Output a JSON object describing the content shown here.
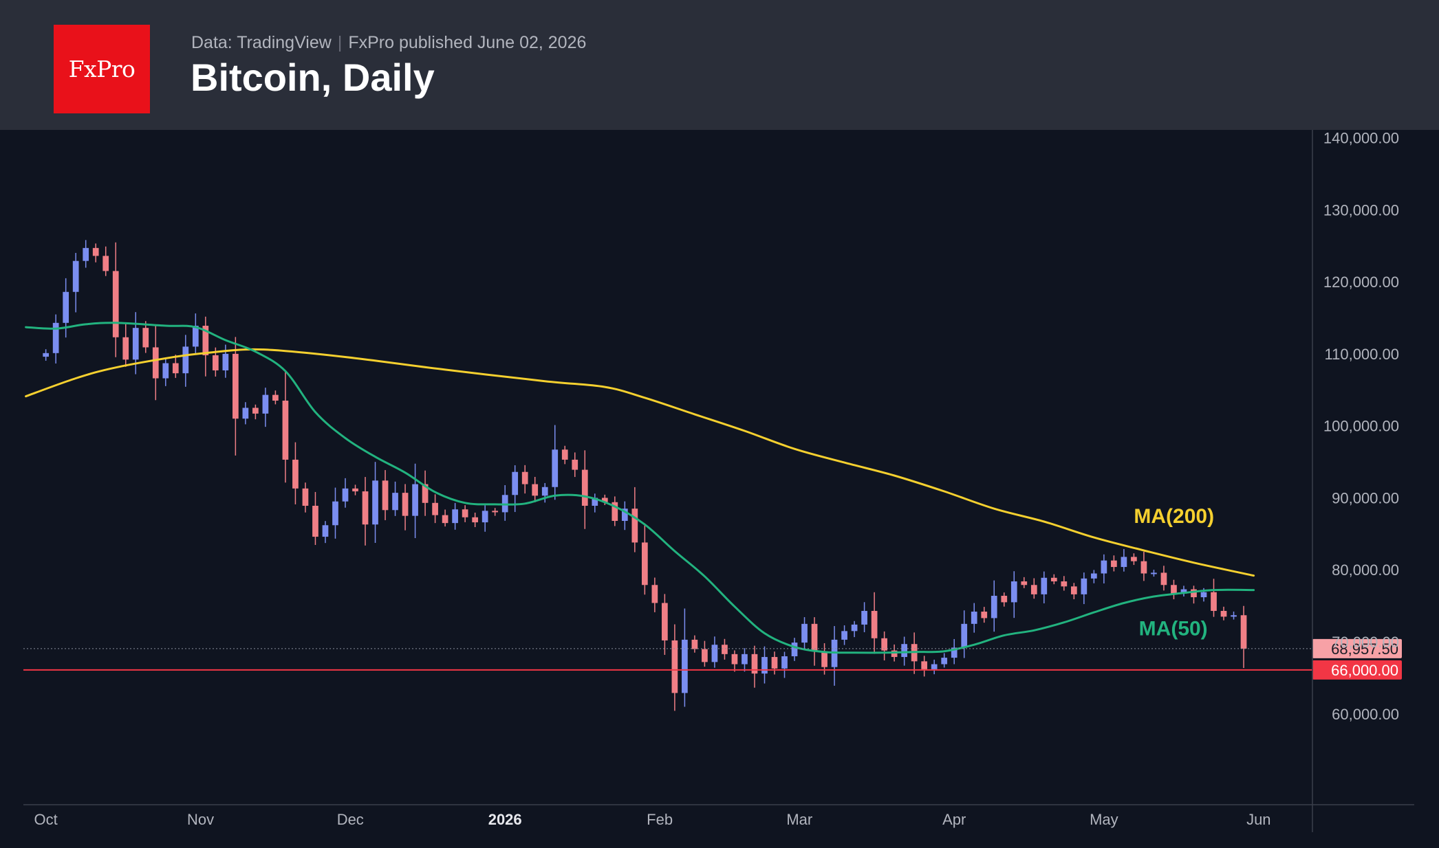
{
  "header": {
    "logo_text": "FxPro",
    "source": "Data: TradingView",
    "publisher": "FxPro published June 02, 2026",
    "title": "Bitcoin, Daily"
  },
  "colors": {
    "background": "#0f1420",
    "header_bg": "#2a2e39",
    "logo_red": "#e9111a",
    "candle_up": "#7b8ef0",
    "candle_down": "#f07f86",
    "ma200": "#f5d02f",
    "ma50": "#22b37f",
    "support_line": "#f23645",
    "axis_text": "#b2b5be"
  },
  "chart_data": {
    "type": "candlestick",
    "title": "Bitcoin, Daily",
    "ylim": [
      47000,
      141000
    ],
    "y_ticks": [
      {
        "value": 60000,
        "label": "60,000.00"
      },
      {
        "value": 70000,
        "label": "70,000.00"
      },
      {
        "value": 80000,
        "label": "80,000.00"
      },
      {
        "value": 90000,
        "label": "90,000.00"
      },
      {
        "value": 100000,
        "label": "100,000.00"
      },
      {
        "value": 110000,
        "label": "110,000.00"
      },
      {
        "value": 120000,
        "label": "120,000.00"
      },
      {
        "value": 130000,
        "label": "130,000.00"
      },
      {
        "value": 140000,
        "label": "140,000.00"
      }
    ],
    "x_ticks": [
      {
        "label": "Oct",
        "day": 0,
        "bold": false
      },
      {
        "label": "Nov",
        "day": 31,
        "bold": false
      },
      {
        "label": "Dec",
        "day": 61,
        "bold": false
      },
      {
        "label": "2026",
        "day": 92,
        "bold": true
      },
      {
        "label": "Feb",
        "day": 123,
        "bold": false
      },
      {
        "label": "Mar",
        "day": 151,
        "bold": false
      },
      {
        "label": "Apr",
        "day": 182,
        "bold": false
      },
      {
        "label": "May",
        "day": 212,
        "bold": false
      },
      {
        "label": "Jun",
        "day": 243,
        "bold": false
      }
    ],
    "x_range_days": [
      -4.5,
      253.5
    ],
    "closes": [
      [
        -4,
        109500
      ],
      [
        0,
        110000
      ],
      [
        2,
        114200
      ],
      [
        4,
        118500
      ],
      [
        6,
        122800
      ],
      [
        8,
        124600
      ],
      [
        10,
        123500
      ],
      [
        12,
        121400
      ],
      [
        14,
        112200
      ],
      [
        16,
        109100
      ],
      [
        18,
        113500
      ],
      [
        20,
        110800
      ],
      [
        22,
        106500
      ],
      [
        24,
        108600
      ],
      [
        26,
        107200
      ],
      [
        28,
        110900
      ],
      [
        30,
        113800
      ],
      [
        32,
        109700
      ],
      [
        34,
        107600
      ],
      [
        36,
        109900
      ],
      [
        38,
        100900
      ],
      [
        40,
        102400
      ],
      [
        42,
        101600
      ],
      [
        44,
        104200
      ],
      [
        46,
        103400
      ],
      [
        48,
        95200
      ],
      [
        50,
        91200
      ],
      [
        52,
        88800
      ],
      [
        54,
        84500
      ],
      [
        56,
        86100
      ],
      [
        58,
        89400
      ],
      [
        60,
        91200
      ],
      [
        62,
        90800
      ],
      [
        64,
        86200
      ],
      [
        66,
        92300
      ],
      [
        68,
        88200
      ],
      [
        70,
        90600
      ],
      [
        72,
        87400
      ],
      [
        74,
        91800
      ],
      [
        76,
        89200
      ],
      [
        78,
        87500
      ],
      [
        80,
        86400
      ],
      [
        82,
        88300
      ],
      [
        84,
        87200
      ],
      [
        86,
        86500
      ],
      [
        88,
        88100
      ],
      [
        90,
        87900
      ],
      [
        92,
        90300
      ],
      [
        94,
        93500
      ],
      [
        96,
        91800
      ],
      [
        98,
        90200
      ],
      [
        100,
        91400
      ],
      [
        102,
        96600
      ],
      [
        104,
        95200
      ],
      [
        106,
        93800
      ],
      [
        108,
        88800
      ],
      [
        110,
        89900
      ],
      [
        112,
        89300
      ],
      [
        114,
        86700
      ],
      [
        116,
        88400
      ],
      [
        118,
        83700
      ],
      [
        120,
        77800
      ],
      [
        122,
        75300
      ],
      [
        124,
        70100
      ],
      [
        126,
        62800
      ],
      [
        128,
        70200
      ],
      [
        130,
        68900
      ],
      [
        132,
        67100
      ],
      [
        134,
        69500
      ],
      [
        136,
        68200
      ],
      [
        138,
        66800
      ],
      [
        140,
        68200
      ],
      [
        142,
        65500
      ],
      [
        144,
        67800
      ],
      [
        146,
        66200
      ],
      [
        148,
        67900
      ],
      [
        150,
        69800
      ],
      [
        152,
        72400
      ],
      [
        154,
        68600
      ],
      [
        156,
        66400
      ],
      [
        158,
        70200
      ],
      [
        160,
        71400
      ],
      [
        162,
        72300
      ],
      [
        164,
        74200
      ],
      [
        166,
        70400
      ],
      [
        168,
        68700
      ],
      [
        170,
        67800
      ],
      [
        172,
        69600
      ],
      [
        174,
        67200
      ],
      [
        176,
        66100
      ],
      [
        178,
        66800
      ],
      [
        180,
        67700
      ],
      [
        182,
        69100
      ],
      [
        184,
        72400
      ],
      [
        186,
        74100
      ],
      [
        188,
        73200
      ],
      [
        190,
        76300
      ],
      [
        192,
        75400
      ],
      [
        194,
        78300
      ],
      [
        196,
        77800
      ],
      [
        198,
        76500
      ],
      [
        200,
        78800
      ],
      [
        202,
        78300
      ],
      [
        204,
        77600
      ],
      [
        206,
        76500
      ],
      [
        208,
        78700
      ],
      [
        210,
        79400
      ],
      [
        212,
        81200
      ],
      [
        214,
        80300
      ],
      [
        216,
        81700
      ],
      [
        218,
        81100
      ],
      [
        220,
        79400
      ],
      [
        222,
        79500
      ],
      [
        224,
        77800
      ],
      [
        226,
        76600
      ],
      [
        228,
        77200
      ],
      [
        230,
        76100
      ],
      [
        232,
        76800
      ],
      [
        234,
        74200
      ],
      [
        236,
        73400
      ],
      [
        238,
        73600
      ],
      [
        240,
        68957.5
      ]
    ],
    "series": [
      {
        "name": "MA(200)",
        "points": [
          [
            -4,
            104000
          ],
          [
            6,
            106500
          ],
          [
            14,
            108000
          ],
          [
            26,
            109500
          ],
          [
            32,
            110000
          ],
          [
            40,
            110500
          ],
          [
            48,
            110300
          ],
          [
            62,
            109300
          ],
          [
            80,
            107700
          ],
          [
            100,
            106100
          ],
          [
            112,
            105300
          ],
          [
            120,
            103800
          ],
          [
            130,
            101500
          ],
          [
            140,
            99200
          ],
          [
            150,
            96700
          ],
          [
            160,
            94800
          ],
          [
            170,
            93000
          ],
          [
            180,
            90800
          ],
          [
            190,
            88400
          ],
          [
            200,
            86600
          ],
          [
            210,
            84400
          ],
          [
            220,
            82600
          ],
          [
            230,
            80900
          ],
          [
            242,
            79100
          ]
        ]
      },
      {
        "name": "MA(50)",
        "points": [
          [
            -4,
            113600
          ],
          [
            2,
            113400
          ],
          [
            8,
            114000
          ],
          [
            14,
            114200
          ],
          [
            24,
            113800
          ],
          [
            30,
            113600
          ],
          [
            36,
            111800
          ],
          [
            42,
            110200
          ],
          [
            48,
            107500
          ],
          [
            54,
            101800
          ],
          [
            60,
            98200
          ],
          [
            66,
            95600
          ],
          [
            72,
            93400
          ],
          [
            78,
            90700
          ],
          [
            84,
            89200
          ],
          [
            90,
            89000
          ],
          [
            96,
            89100
          ],
          [
            102,
            90200
          ],
          [
            108,
            90100
          ],
          [
            114,
            88700
          ],
          [
            120,
            86200
          ],
          [
            126,
            82500
          ],
          [
            132,
            79000
          ],
          [
            138,
            74800
          ],
          [
            144,
            71100
          ],
          [
            150,
            69200
          ],
          [
            156,
            68500
          ],
          [
            162,
            68400
          ],
          [
            168,
            68400
          ],
          [
            174,
            68500
          ],
          [
            180,
            68600
          ],
          [
            186,
            69500
          ],
          [
            192,
            70800
          ],
          [
            198,
            71500
          ],
          [
            204,
            72600
          ],
          [
            210,
            74000
          ],
          [
            216,
            75300
          ],
          [
            222,
            76200
          ],
          [
            228,
            76700
          ],
          [
            234,
            77100
          ],
          [
            242,
            77100
          ]
        ]
      }
    ],
    "annotations": [
      {
        "text": "MA(200)",
        "day": 218,
        "value": 86400,
        "color": "#f5d02f"
      },
      {
        "text": "MA(50)",
        "day": 219,
        "value": 70800,
        "color": "#22b37f"
      }
    ],
    "last_price": {
      "value": 68957.5,
      "label": "68,957.50"
    },
    "support": {
      "value": 66000,
      "label": "66,000.00"
    }
  }
}
